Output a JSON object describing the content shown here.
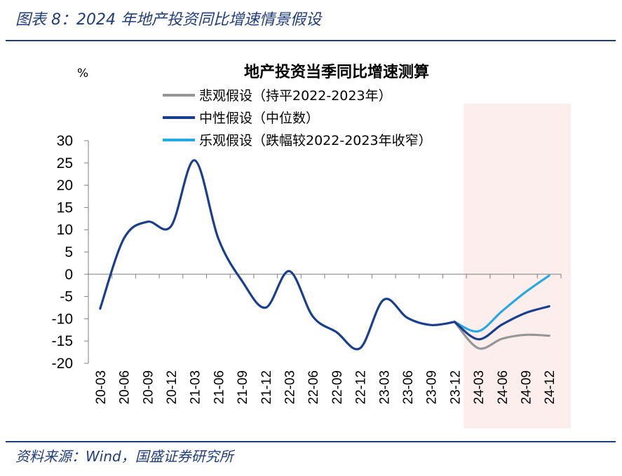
{
  "figure_title": "图表 8：2024 年地产投资同比增速情景假设",
  "source": "资料来源：Wind，国盛证券研究所",
  "colors": {
    "pessimistic": "#969696",
    "neutral": "#1a3f8f",
    "optimistic": "#29a8e0",
    "forecast_shade": "#fdeeee",
    "axis": "#7f7f7f"
  },
  "chart_data": {
    "type": "line",
    "title": "地产投资当季同比增速测算",
    "ylabel": "%",
    "ylim": [
      -20,
      30
    ],
    "yticks": [
      30,
      25,
      20,
      15,
      10,
      5,
      0,
      -5,
      -10,
      -15,
      -20
    ],
    "categories": [
      "20-03",
      "20-06",
      "20-09",
      "20-12",
      "21-03",
      "21-06",
      "21-09",
      "21-12",
      "22-03",
      "22-06",
      "22-09",
      "22-12",
      "23-03",
      "23-06",
      "23-09",
      "23-12",
      "24-03",
      "24-06",
      "24-09",
      "24-12"
    ],
    "forecast_range": [
      "24-03",
      "24-12"
    ],
    "history": [
      -7.7,
      8.0,
      11.8,
      10.8,
      25.6,
      8.0,
      -1.5,
      -7.5,
      0.7,
      -9.5,
      -13.0,
      -16.6,
      -5.7,
      -9.8,
      -11.4,
      -10.7
    ],
    "series": [
      {
        "name": "悲观假设（持平2022-2023年）",
        "color_key": "pessimistic",
        "values": [
          null,
          null,
          null,
          null,
          null,
          null,
          null,
          null,
          null,
          null,
          null,
          null,
          null,
          null,
          null,
          -10.7,
          -16.6,
          -14.5,
          -13.6,
          -13.8
        ]
      },
      {
        "name": "中性假设（中位数）",
        "color_key": "neutral",
        "values": [
          null,
          null,
          null,
          null,
          null,
          null,
          null,
          null,
          null,
          null,
          null,
          null,
          null,
          null,
          null,
          -10.7,
          -14.6,
          -11.3,
          -8.7,
          -7.2
        ]
      },
      {
        "name": "乐观假设（跌幅较2022-2023年收窄）",
        "color_key": "optimistic",
        "values": [
          null,
          null,
          null,
          null,
          null,
          null,
          null,
          null,
          null,
          null,
          null,
          null,
          null,
          null,
          null,
          -10.7,
          -12.8,
          -8.3,
          -4.0,
          -0.3
        ]
      }
    ],
    "legend_position": "top-right"
  }
}
